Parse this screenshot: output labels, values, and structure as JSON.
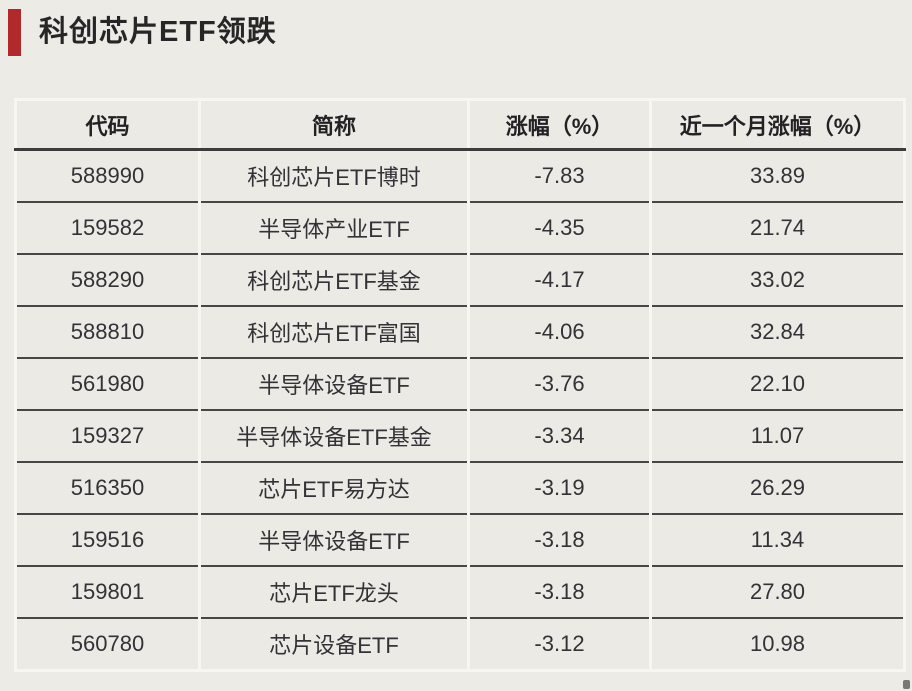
{
  "page": {
    "background_color": "#edebe6",
    "accent_color": "#b1292a"
  },
  "title": {
    "text": "科创芯片ETF领跌"
  },
  "table": {
    "columns": [
      "代码",
      "简称",
      "涨幅（%）",
      "近一个月涨幅（%）"
    ],
    "rows": [
      [
        "588990",
        "科创芯片ETF博时",
        "-7.83",
        "33.89"
      ],
      [
        "159582",
        "半导体产业ETF",
        "-4.35",
        "21.74"
      ],
      [
        "588290",
        "科创芯片ETF基金",
        "-4.17",
        "33.02"
      ],
      [
        "588810",
        "科创芯片ETF富国",
        "-4.06",
        "32.84"
      ],
      [
        "561980",
        "半导体设备ETF",
        "-3.76",
        "22.10"
      ],
      [
        "159327",
        "半导体设备ETF基金",
        "-3.34",
        "11.07"
      ],
      [
        "516350",
        "芯片ETF易方达",
        "-3.19",
        "26.29"
      ],
      [
        "159516",
        "半导体设备ETF",
        "-3.18",
        "11.34"
      ],
      [
        "159801",
        "芯片ETF龙头",
        "-3.18",
        "27.80"
      ],
      [
        "560780",
        "芯片设备ETF",
        "-3.12",
        "10.98"
      ]
    ]
  },
  "chart_data": {
    "type": "table",
    "title": "科创芯片ETF领跌",
    "columns": [
      "代码",
      "简称",
      "涨幅（%）",
      "近一个月涨幅（%）"
    ],
    "rows": [
      {
        "code": "588990",
        "name": "科创芯片ETF博时",
        "change_pct": -7.83,
        "one_month_change_pct": 33.89
      },
      {
        "code": "159582",
        "name": "半导体产业ETF",
        "change_pct": -4.35,
        "one_month_change_pct": 21.74
      },
      {
        "code": "588290",
        "name": "科创芯片ETF基金",
        "change_pct": -4.17,
        "one_month_change_pct": 33.02
      },
      {
        "code": "588810",
        "name": "科创芯片ETF富国",
        "change_pct": -4.06,
        "one_month_change_pct": 32.84
      },
      {
        "code": "561980",
        "name": "半导体设备ETF",
        "change_pct": -3.76,
        "one_month_change_pct": 22.1
      },
      {
        "code": "159327",
        "name": "半导体设备ETF基金",
        "change_pct": -3.34,
        "one_month_change_pct": 11.07
      },
      {
        "code": "516350",
        "name": "芯片ETF易方达",
        "change_pct": -3.19,
        "one_month_change_pct": 26.29
      },
      {
        "code": "159516",
        "name": "半导体设备ETF",
        "change_pct": -3.18,
        "one_month_change_pct": 11.34
      },
      {
        "code": "159801",
        "name": "芯片ETF龙头",
        "change_pct": -3.18,
        "one_month_change_pct": 27.8
      },
      {
        "code": "560780",
        "name": "芯片设备ETF",
        "change_pct": -3.12,
        "one_month_change_pct": 10.98
      }
    ]
  }
}
